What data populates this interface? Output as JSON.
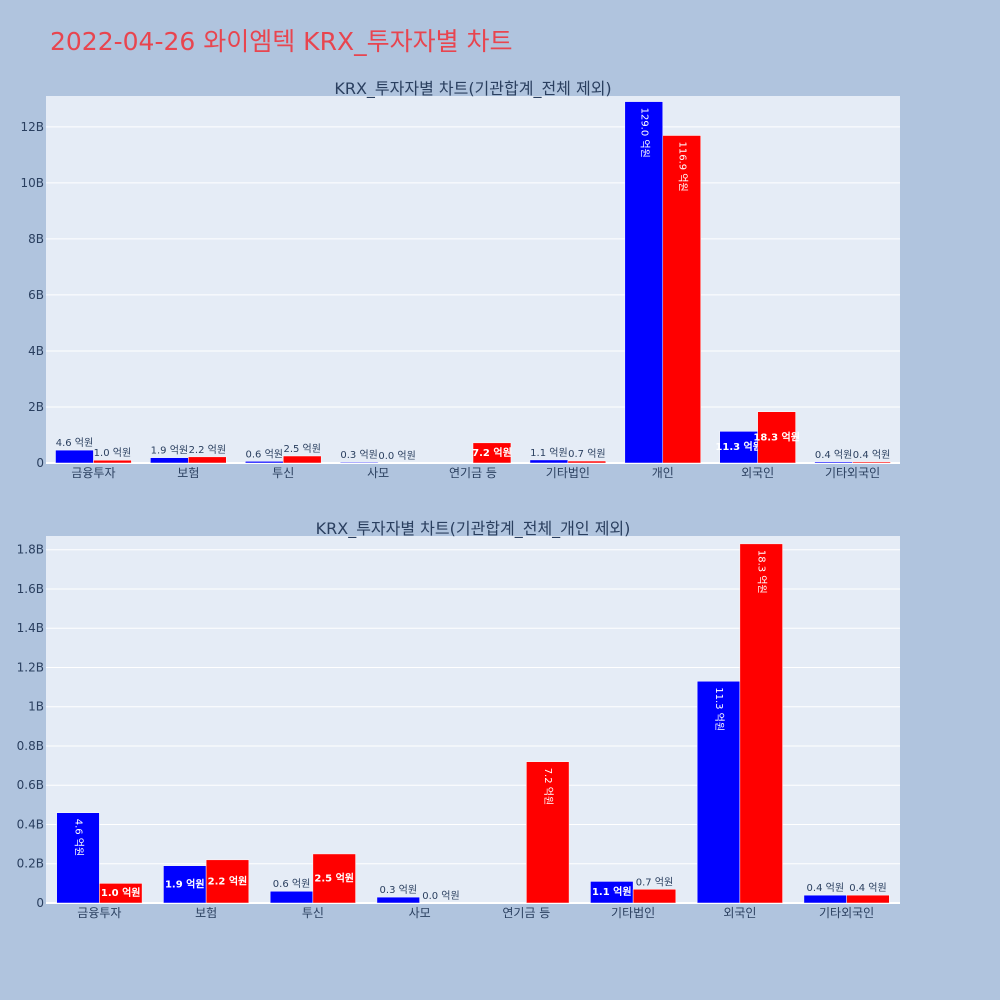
{
  "page": {
    "title": "2022-04-26 와이엠텍 KRX_투자자별 차트",
    "background": "#b0c4de",
    "title_color": "#e8454f"
  },
  "chart_data": [
    {
      "type": "bar",
      "title": "KRX_투자자별 차트(기관합계_전체 제외)",
      "categories": [
        "금융투자",
        "보험",
        "투신",
        "사모",
        "연기금 등",
        "기타법인",
        "개인",
        "외국인",
        "기타외국인"
      ],
      "series": [
        {
          "color": "#0000ff",
          "values": [
            460000000,
            190000000,
            60000000,
            30000000,
            0,
            110000000,
            12900000000,
            1130000000,
            40000000
          ],
          "labels": [
            "4.6 억원",
            "1.9 억원",
            "0.6 억원",
            "0.3 억원",
            "",
            "1.1 억원",
            "129.0 억원",
            "11.3 억원",
            "0.4 억원"
          ]
        },
        {
          "color": "#ff0000",
          "values": [
            100000000,
            220000000,
            250000000,
            0,
            720000000,
            70000000,
            11690000000,
            1830000000,
            40000000
          ],
          "labels": [
            "1.0 억원",
            "2.2 억원",
            "2.5 억원",
            "0.0 억원",
            "7.2 억원",
            "0.7 억원",
            "116.9 억원",
            "18.3 억원",
            "0.4 억원"
          ]
        }
      ],
      "yticks": [
        {
          "value": 0,
          "label": "0"
        },
        {
          "value": 2000000000,
          "label": "2B"
        },
        {
          "value": 4000000000,
          "label": "4B"
        },
        {
          "value": 6000000000,
          "label": "6B"
        },
        {
          "value": 8000000000,
          "label": "8B"
        },
        {
          "value": 10000000000,
          "label": "10B"
        },
        {
          "value": 12000000000,
          "label": "12B"
        }
      ],
      "ylim": [
        0,
        13100000000
      ],
      "grid": true,
      "plot_bg": "#e5ecf6"
    },
    {
      "type": "bar",
      "title": "KRX_투자자별 차트(기관합계_전체_개인 제외)",
      "categories": [
        "금융투자",
        "보험",
        "투신",
        "사모",
        "연기금 등",
        "기타법인",
        "외국인",
        "기타외국인"
      ],
      "series": [
        {
          "color": "#0000ff",
          "values": [
            460000000,
            190000000,
            60000000,
            30000000,
            0,
            110000000,
            1130000000,
            40000000
          ],
          "labels": [
            "4.6 억원",
            "1.9 억원",
            "0.6 억원",
            "0.3 억원",
            "",
            "1.1 억원",
            "11.3 억원",
            "0.4 억원"
          ]
        },
        {
          "color": "#ff0000",
          "values": [
            100000000,
            220000000,
            250000000,
            0,
            720000000,
            70000000,
            1830000000,
            40000000
          ],
          "labels": [
            "1.0 억원",
            "2.2 억원",
            "2.5 억원",
            "0.0 억원",
            "7.2 억원",
            "0.7 억원",
            "18.3 억원",
            "0.4 억원"
          ]
        }
      ],
      "yticks": [
        {
          "value": 0,
          "label": "0"
        },
        {
          "value": 200000000,
          "label": "0.2B"
        },
        {
          "value": 400000000,
          "label": "0.4B"
        },
        {
          "value": 600000000,
          "label": "0.6B"
        },
        {
          "value": 800000000,
          "label": "0.8B"
        },
        {
          "value": 1000000000,
          "label": "1B"
        },
        {
          "value": 1200000000,
          "label": "1.2B"
        },
        {
          "value": 1400000000,
          "label": "1.4B"
        },
        {
          "value": 1600000000,
          "label": "1.6B"
        },
        {
          "value": 1800000000,
          "label": "1.8B"
        }
      ],
      "ylim": [
        0,
        1870000000
      ],
      "grid": true,
      "plot_bg": "#e5ecf6"
    }
  ]
}
